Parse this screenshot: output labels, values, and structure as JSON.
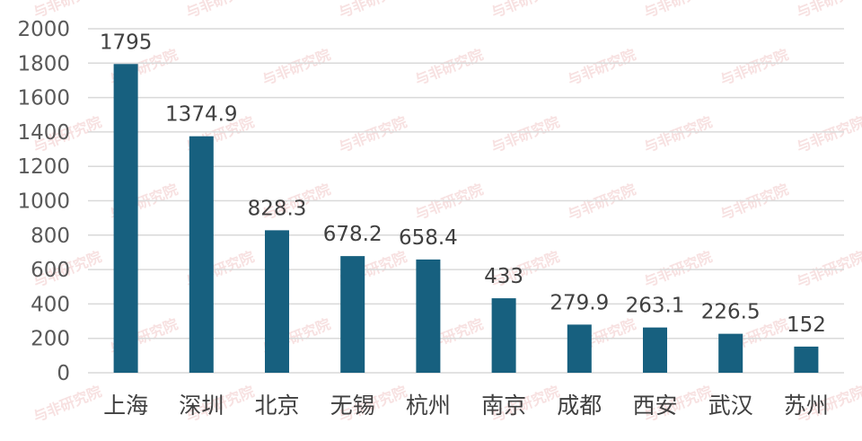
{
  "chart_data": {
    "type": "bar",
    "categories": [
      "上海",
      "深圳",
      "北京",
      "无锡",
      "杭州",
      "南京",
      "成都",
      "西安",
      "武汉",
      "苏州"
    ],
    "values": [
      1795,
      1374.9,
      828.3,
      678.2,
      658.4,
      433,
      279.9,
      263.1,
      226.5,
      152
    ],
    "value_labels": [
      "1795",
      "1374.9",
      "828.3",
      "678.2",
      "658.4",
      "433",
      "279.9",
      "263.1",
      "226.5",
      "152"
    ],
    "yticks": [
      "0",
      "200",
      "400",
      "600",
      "800",
      "1000",
      "1200",
      "1400",
      "1600",
      "1800",
      "2000"
    ],
    "ylim": [
      0,
      2000
    ],
    "grid": true,
    "legend": "none",
    "bar_color": "#17607f",
    "grid_color": "#d9d9d9",
    "watermark": "与非研究院"
  }
}
